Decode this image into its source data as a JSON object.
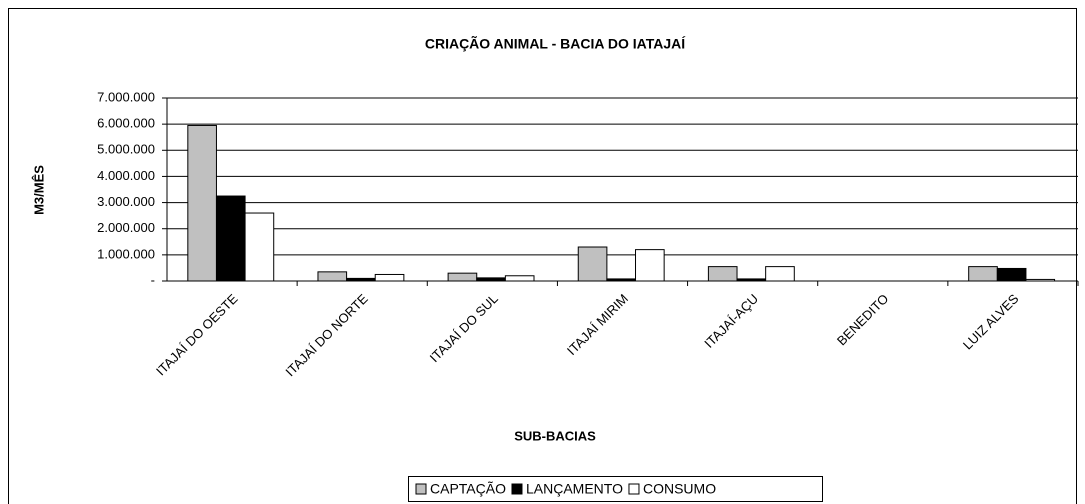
{
  "chart_data": {
    "type": "bar",
    "title": "CRIAÇÃO ANIMAL - BACIA DO IATAJAÍ",
    "x_label": "SUB-BACIAS",
    "y_label": "M3/MÊS",
    "categories": [
      "ITAJAÍ DO OESTE",
      "ITAJAÍ DO NORTE",
      "ITAJAÍ DO SUL",
      "ITAJAÍ MIRIM",
      "ITAJAÍ-AÇU",
      "BENEDITO",
      "LUIZ ALVES"
    ],
    "series": [
      {
        "name": "CAPTAÇÃO",
        "color": "#c0c0c0",
        "values": [
          5950000,
          350000,
          300000,
          1300000,
          550000,
          0,
          550000
        ]
      },
      {
        "name": "LANÇAMENTO",
        "color": "#000000",
        "values": [
          3250000,
          100000,
          120000,
          80000,
          80000,
          0,
          480000
        ]
      },
      {
        "name": "CONSUMO",
        "color": "#ffffff",
        "values": [
          2600000,
          250000,
          200000,
          1200000,
          550000,
          0,
          60000
        ]
      }
    ],
    "ylim": [
      0,
      7000000
    ],
    "yticks": [
      {
        "value": 0,
        "label": "-"
      },
      {
        "value": 1000000,
        "label": "1.000.000"
      },
      {
        "value": 2000000,
        "label": "2.000.000"
      },
      {
        "value": 3000000,
        "label": "3.000.000"
      },
      {
        "value": 4000000,
        "label": "4.000.000"
      },
      {
        "value": 5000000,
        "label": "5.000.000"
      },
      {
        "value": 6000000,
        "label": "6.000.000"
      },
      {
        "value": 7000000,
        "label": "7.000.000"
      }
    ],
    "grid": true,
    "legend": "bottom"
  }
}
